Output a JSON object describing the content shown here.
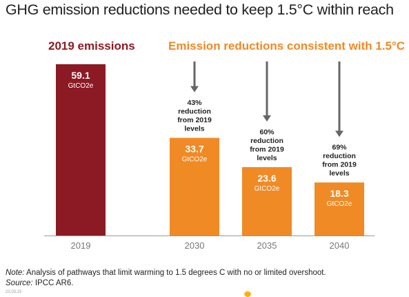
{
  "title": "GHG emission reductions needed to keep 1.5°C within reach",
  "headings": {
    "left": {
      "text": "2019 emissions",
      "color": "#8c1a24"
    },
    "right": {
      "text": "Emission reductions consistent with 1.5°C",
      "color": "#f08a24"
    }
  },
  "colors": {
    "baseline": "#8c1a24",
    "reduction": "#f08a24",
    "arrow": "#666666",
    "axis": "#999999"
  },
  "chart_data": {
    "type": "bar",
    "categories": [
      "2019",
      "2030",
      "2035",
      "2040"
    ],
    "values": [
      59.1,
      33.7,
      23.6,
      18.3
    ],
    "value_labels": [
      "59.1",
      "33.7",
      "23.6",
      "18.3"
    ],
    "unit": "GtCO2e",
    "reductions": [
      null,
      "43%\nreduction\nfrom 2019\nlevels",
      "60%\nreduction\nfrom 2019\nlevels",
      "69%\nreduction\nfrom 2019\nlevels"
    ],
    "ylim": [
      0,
      59.1
    ],
    "grid": false,
    "legend": "none"
  },
  "footnote": {
    "note_label": "Note:",
    "note_text": " Analysis of pathways that limit warming to 1.5 degrees C with no or limited overshoot.",
    "source_label": "Source:",
    "source_text": " IPCC AR6.",
    "code": "23.03.15"
  }
}
